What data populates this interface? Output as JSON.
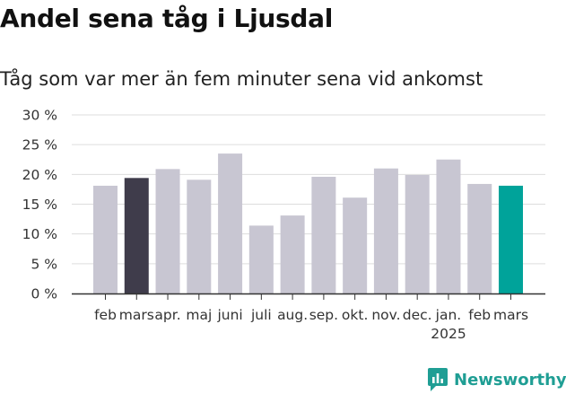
{
  "title": "Andel sena tåg i Ljusdal",
  "subtitle": "Tåg som var mer än fem minuter sena vid ankomst",
  "brand": "Newsworthy",
  "colors": {
    "default_bar": "#c8c6d2",
    "highlight_prev": "#3f3c4b",
    "highlight_current": "#00a39a",
    "grid": "#dddddd",
    "brand": "#1f9e94"
  },
  "chart_data": {
    "type": "bar",
    "categories": [
      "feb",
      "mars",
      "apr.",
      "maj",
      "juni",
      "juli",
      "aug.",
      "sep.",
      "okt.",
      "nov.",
      "dec.",
      "jan.",
      "feb",
      "mars"
    ],
    "year_label": {
      "category_index": 11,
      "text": "2025"
    },
    "values": [
      18.1,
      19.4,
      20.9,
      19.1,
      23.5,
      11.4,
      13.1,
      19.6,
      16.1,
      21.0,
      19.9,
      22.5,
      18.4,
      18.1
    ],
    "highlights": {
      "1": "highlight_prev",
      "13": "highlight_current"
    },
    "yticks": [
      "0 %",
      "5 %",
      "10 %",
      "15 %",
      "20 %",
      "25 %",
      "30 %"
    ],
    "ylim": [
      0,
      30
    ],
    "grid": true,
    "xlabel": "",
    "ylabel": ""
  }
}
